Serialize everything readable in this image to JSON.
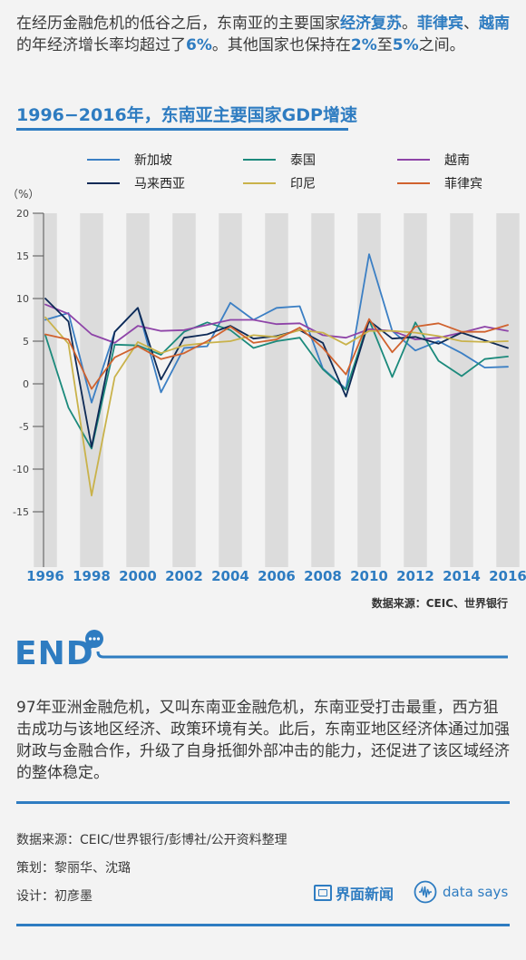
{
  "intro": {
    "t1": "在经历金融危机的低谷之后，东南亚的主要国家",
    "h1": "经济复苏",
    "t2": "。",
    "h2": "菲律宾",
    "t3": "、",
    "h3": "越南",
    "t4": "的年经济增长率均超过了",
    "h4": "6%",
    "t5": "。其他国家也保持在",
    "h5": "2%",
    "t6": "至",
    "h6": "5%",
    "t7": "之间。"
  },
  "colors": {
    "accent": "#2e7cc1",
    "band": "#dcdcdc"
  },
  "chart_data": {
    "type": "line",
    "title": "1996−2016年，东南亚主要国家GDP增速",
    "ylabel": "（%）",
    "xlabel": "",
    "ylim": [
      -20,
      20
    ],
    "yticks": [
      "20",
      "15",
      "10",
      "5",
      "0",
      "-5",
      "-10",
      "-15"
    ],
    "xtick_labels": [
      "1996",
      "1998",
      "2000",
      "2002",
      "2004",
      "2006",
      "2008",
      "2010",
      "2012",
      "2014",
      "2016"
    ],
    "x": [
      1996,
      1997,
      1998,
      1999,
      2000,
      2001,
      2002,
      2003,
      2004,
      2005,
      2006,
      2007,
      2008,
      2009,
      2010,
      2011,
      2012,
      2013,
      2014,
      2015,
      2016
    ],
    "grid": "alternating vertical bands",
    "legend_position": "top",
    "series": [
      {
        "name": "新加坡",
        "color": "#3b7fc4",
        "values": [
          7.5,
          8.3,
          -2.2,
          6.1,
          8.9,
          -1.0,
          4.2,
          4.4,
          9.5,
          7.5,
          8.9,
          9.1,
          1.8,
          -0.6,
          15.2,
          6.2,
          3.9,
          5.0,
          3.6,
          1.9,
          2.0
        ]
      },
      {
        "name": "泰国",
        "color": "#1c8a7c",
        "values": [
          5.7,
          -2.8,
          -7.6,
          4.6,
          4.5,
          3.4,
          6.1,
          7.2,
          6.3,
          4.2,
          5.0,
          5.4,
          1.7,
          -0.7,
          7.5,
          0.8,
          7.2,
          2.7,
          0.9,
          2.9,
          3.2
        ]
      },
      {
        "name": "越南",
        "color": "#8e44a8",
        "values": [
          9.3,
          8.2,
          5.8,
          4.8,
          6.8,
          6.2,
          6.3,
          6.9,
          7.5,
          7.5,
          7.0,
          7.1,
          5.7,
          5.4,
          6.4,
          6.2,
          5.2,
          5.4,
          6.0,
          6.7,
          6.2
        ]
      },
      {
        "name": "马来西亚",
        "color": "#0e2a56",
        "values": [
          10.0,
          7.3,
          -7.4,
          6.1,
          8.9,
          0.5,
          5.4,
          5.8,
          6.8,
          5.3,
          5.6,
          6.3,
          4.8,
          -1.5,
          7.4,
          5.3,
          5.5,
          4.7,
          6.0,
          5.1,
          4.2
        ]
      },
      {
        "name": "印尼",
        "color": "#c9b24a",
        "values": [
          7.8,
          4.7,
          -13.1,
          0.8,
          4.9,
          3.6,
          4.5,
          4.8,
          5.0,
          5.7,
          5.5,
          6.3,
          6.0,
          4.6,
          6.2,
          6.2,
          6.0,
          5.6,
          5.0,
          4.9,
          5.0
        ]
      },
      {
        "name": "菲律宾",
        "color": "#d0622e",
        "values": [
          5.8,
          5.2,
          -0.6,
          3.1,
          4.4,
          2.9,
          3.6,
          5.0,
          6.7,
          4.8,
          5.2,
          6.6,
          4.2,
          1.1,
          7.6,
          3.7,
          6.7,
          7.1,
          6.1,
          6.1,
          6.9
        ]
      }
    ]
  },
  "chart_source": "数据来源：CEIC、世界银行",
  "end": {
    "word": "END"
  },
  "summary": "97年亚洲金融危机，又叫东南亚金融危机，东南亚受打击最重，西方狙击成功与该地区经济、政策环境有关。此后，东南亚地区经济体通过加强财政与金融合作，升级了自身抵御外部冲击的能力，还促进了该区域经济的整体稳定。",
  "credits": {
    "source": "数据来源：CEIC/世界银行/彭博社/公开资料整理",
    "planner": "策划：黎丽华、沈璐",
    "designer": "设计：初彦墨"
  },
  "logos": {
    "jiemian": "界面新闻",
    "datasays": "data says"
  }
}
